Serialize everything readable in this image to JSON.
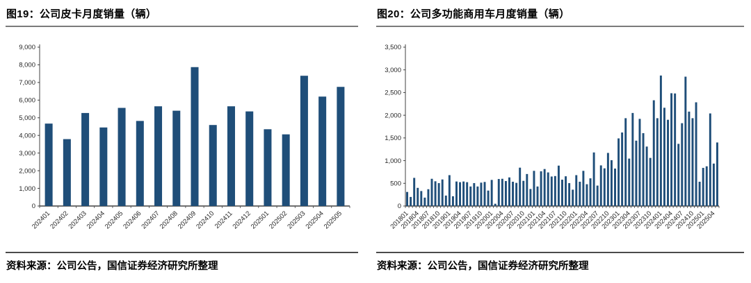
{
  "panels": [
    {
      "title": "图19：公司皮卡月度销量（辆）",
      "source": "资料来源：公司公告，国信证券经济研究所整理"
    },
    {
      "title": "图20：公司多功能商用车月度销量（辆）",
      "source": "资料来源：公司公告，国信证券经济研究所整理"
    }
  ],
  "colors": {
    "bar": "#1F4E79",
    "axis": "#404040",
    "tick_text": "#262626",
    "title_rule": "#7a7a7a",
    "footer_rule": "#4a4a4a"
  },
  "chart_data": [
    {
      "type": "bar",
      "title": "图19：公司皮卡月度销量（辆）",
      "categories": [
        "202401",
        "202402",
        "202403",
        "202404",
        "202405",
        "202406",
        "202407",
        "202408",
        "202409",
        "202410",
        "202411",
        "202412",
        "202501",
        "202502",
        "202503",
        "202504",
        "202505"
      ],
      "values": [
        4670,
        3790,
        5270,
        4450,
        5560,
        4820,
        5650,
        5400,
        7870,
        4590,
        5650,
        5360,
        4350,
        4060,
        7380,
        6200,
        6750
      ],
      "xlabel": "",
      "ylabel": "",
      "ylim": [
        0,
        9000
      ],
      "yticks": [
        "0",
        "1,000",
        "2,000",
        "3,000",
        "4,000",
        "5,000",
        "6,000",
        "7,000",
        "8,000",
        "9,000"
      ],
      "xtick_every": 1,
      "xtick_rotation": -45,
      "grid": false,
      "legend": "none",
      "bar_color": "#1F4E79"
    },
    {
      "type": "bar",
      "title": "图20：公司多功能商用车月度销量（辆）",
      "categories": [
        "201801",
        "201802",
        "201803",
        "201804",
        "201805",
        "201806",
        "201807",
        "201808",
        "201809",
        "201810",
        "201811",
        "201812",
        "201901",
        "201902",
        "201903",
        "201904",
        "201905",
        "201906",
        "201907",
        "201908",
        "201909",
        "201910",
        "201911",
        "201912",
        "202001",
        "202002",
        "202003",
        "202004",
        "202005",
        "202006",
        "202007",
        "202008",
        "202009",
        "202010",
        "202011",
        "202012",
        "202101",
        "202102",
        "202103",
        "202104",
        "202105",
        "202106",
        "202107",
        "202108",
        "202109",
        "202110",
        "202111",
        "202112",
        "202201",
        "202202",
        "202203",
        "202204",
        "202205",
        "202206",
        "202207",
        "202208",
        "202209",
        "202210",
        "202211",
        "202212",
        "202301",
        "202302",
        "202303",
        "202304",
        "202305",
        "202306",
        "202307",
        "202308",
        "202309",
        "202310",
        "202311",
        "202312",
        "202401",
        "202402",
        "202403",
        "202404",
        "202405",
        "202406",
        "202407",
        "202408",
        "202409",
        "202410",
        "202411",
        "202412",
        "202501",
        "202502",
        "202503",
        "202504",
        "202505"
      ],
      "values": [
        310,
        200,
        620,
        400,
        330,
        185,
        370,
        600,
        545,
        505,
        585,
        230,
        680,
        215,
        540,
        525,
        540,
        525,
        430,
        505,
        430,
        515,
        530,
        340,
        575,
        50,
        595,
        600,
        550,
        630,
        535,
        510,
        845,
        555,
        705,
        375,
        775,
        430,
        765,
        815,
        740,
        650,
        660,
        890,
        580,
        655,
        505,
        360,
        680,
        535,
        775,
        480,
        610,
        1180,
        450,
        895,
        830,
        1170,
        1010,
        825,
        1490,
        1620,
        1935,
        1045,
        2050,
        1440,
        1920,
        1605,
        1310,
        1060,
        2330,
        1935,
        2875,
        2165,
        1900,
        2485,
        2480,
        1370,
        1825,
        2850,
        2080,
        1935,
        2285,
        535,
        840,
        875,
        2040,
        935,
        1400
      ],
      "xlabel": "",
      "ylabel": "",
      "ylim": [
        0,
        3500
      ],
      "yticks": [
        "0",
        "500",
        "1,000",
        "1,500",
        "2,000",
        "2,500",
        "3,000",
        "3,500"
      ],
      "xtick_every": 3,
      "xtick_rotation": -45,
      "grid": false,
      "legend": "none",
      "bar_color": "#1F4E79"
    }
  ]
}
